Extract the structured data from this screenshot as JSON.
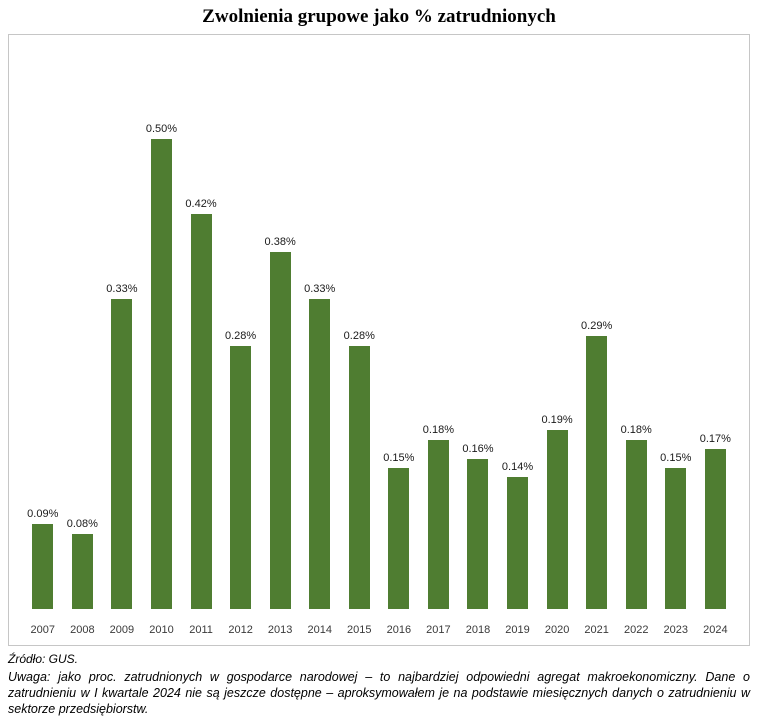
{
  "title": "Zwolnienia grupowe jako % zatrudnionych",
  "chart_data": {
    "type": "bar",
    "title": "Zwolnienia grupowe jako % zatrudnionych",
    "categories": [
      "2007",
      "2008",
      "2009",
      "2010",
      "2011",
      "2012",
      "2013",
      "2014",
      "2015",
      "2016",
      "2017",
      "2018",
      "2019",
      "2020",
      "2021",
      "2022",
      "2023",
      "2024"
    ],
    "values": [
      0.09,
      0.08,
      0.33,
      0.5,
      0.42,
      0.28,
      0.38,
      0.33,
      0.28,
      0.15,
      0.18,
      0.16,
      0.14,
      0.19,
      0.29,
      0.18,
      0.15,
      0.17
    ],
    "value_labels": [
      "0.09%",
      "0.08%",
      "0.33%",
      "0.50%",
      "0.42%",
      "0.28%",
      "0.38%",
      "0.33%",
      "0.28%",
      "0.15%",
      "0.18%",
      "0.16%",
      "0.14%",
      "0.19%",
      "0.29%",
      "0.18%",
      "0.15%",
      "0.17%"
    ],
    "xlabel": "",
    "ylabel": "",
    "ylim": [
      0,
      0.5
    ],
    "grid": false,
    "legend": false,
    "bar_color": "#4f7d31",
    "frame_border_color": "#c6c6c6"
  },
  "source": "Źródło: GUS.",
  "note": "Uwaga: jako proc. zatrudnionych w gospodarce narodowej – to najbardziej odpowiedni agregat makroekonomiczny. Dane o zatrudnieniu w I kwartale 2024 nie są jeszcze dostępne – aproksymowałem je na podstawie miesięcznych danych o zatrudnieniu w sektorze przedsiębiorstw."
}
